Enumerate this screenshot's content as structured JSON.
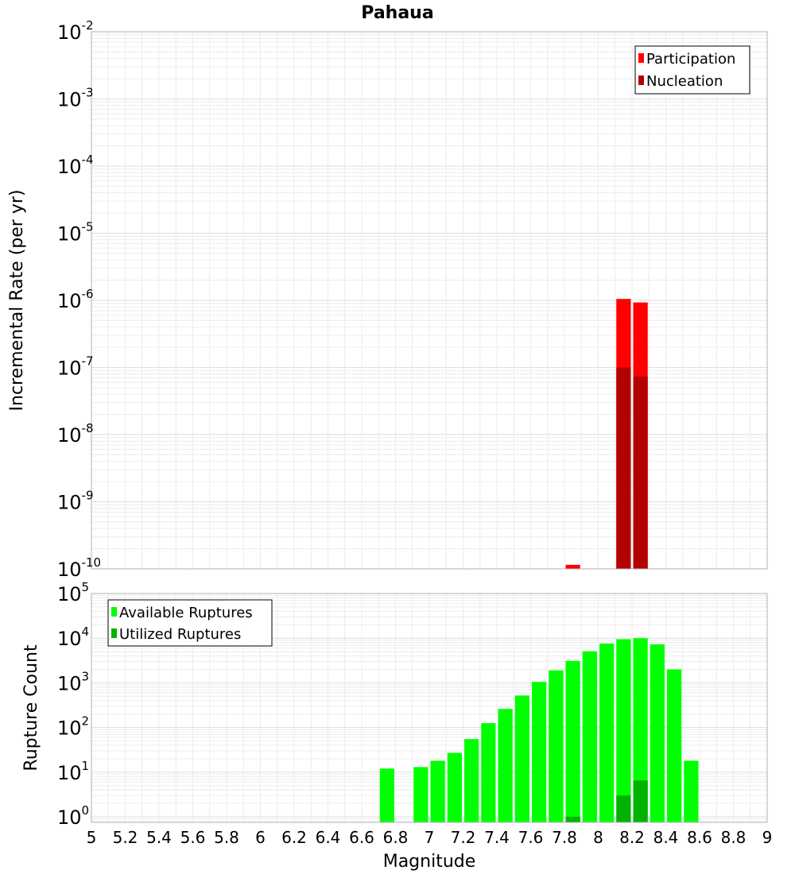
{
  "chart_data": [
    {
      "type": "bar",
      "title": "Pahaua",
      "xlabel": "",
      "ylabel": "Incremental Rate (per yr)",
      "yscale": "log",
      "ylim": [
        1e-10,
        0.01
      ],
      "y_ticks": [
        {
          "base": "10",
          "exp": "-2"
        },
        {
          "base": "10",
          "exp": "-3"
        },
        {
          "base": "10",
          "exp": "-4"
        },
        {
          "base": "10",
          "exp": "-5"
        },
        {
          "base": "10",
          "exp": "-6"
        },
        {
          "base": "10",
          "exp": "-7"
        },
        {
          "base": "10",
          "exp": "-8"
        },
        {
          "base": "10",
          "exp": "-9"
        },
        {
          "base": "10",
          "exp": "-10"
        }
      ],
      "xlim": [
        5,
        9
      ],
      "bin_width": 0.1,
      "grid": true,
      "legend_position": "top-right",
      "series": [
        {
          "name": "Participation",
          "color": "#ff0000",
          "x": [
            7.85,
            8.15,
            8.25
          ],
          "values": [
            1.15e-10,
            1.05e-06,
            9.3e-07
          ]
        },
        {
          "name": "Nucleation",
          "color": "#b30000",
          "x": [
            8.15,
            8.25
          ],
          "values": [
            1e-07,
            7.3e-08
          ]
        }
      ]
    },
    {
      "type": "bar",
      "title": "",
      "xlabel": "Magnitude",
      "ylabel": "Rupture Count",
      "yscale": "log",
      "ylim": [
        0.75,
        100000
      ],
      "y_ticks": [
        {
          "base": "10",
          "exp": "5"
        },
        {
          "base": "10",
          "exp": "4"
        },
        {
          "base": "10",
          "exp": "3"
        },
        {
          "base": "10",
          "exp": "2"
        },
        {
          "base": "10",
          "exp": "1"
        },
        {
          "base": "10",
          "exp": "0"
        }
      ],
      "xlim": [
        5,
        9
      ],
      "x_tick_labels": [
        "5",
        "5.2",
        "5.4",
        "5.6",
        "5.8",
        "6",
        "6.2",
        "6.4",
        "6.6",
        "6.8",
        "7",
        "7.2",
        "7.4",
        "7.6",
        "7.8",
        "8",
        "8.2",
        "8.4",
        "8.6",
        "8.8",
        "9"
      ],
      "bin_width": 0.1,
      "grid": true,
      "legend_position": "top-left",
      "series": [
        {
          "name": "Available Ruptures",
          "color": "#00ff00",
          "x": [
            6.75,
            6.95,
            7.05,
            7.15,
            7.25,
            7.35,
            7.45,
            7.55,
            7.65,
            7.75,
            7.85,
            7.95,
            8.05,
            8.15,
            8.25,
            8.35,
            8.45,
            8.55
          ],
          "values": [
            12,
            13,
            18,
            27,
            55,
            125,
            260,
            520,
            1050,
            1900,
            3100,
            5100,
            7600,
            9500,
            10000,
            7300,
            2000,
            18
          ]
        },
        {
          "name": "Utilized Ruptures",
          "color": "#00b300",
          "x": [
            7.85,
            8.15,
            8.25
          ],
          "values": [
            1,
            3,
            6.5
          ]
        }
      ]
    }
  ]
}
